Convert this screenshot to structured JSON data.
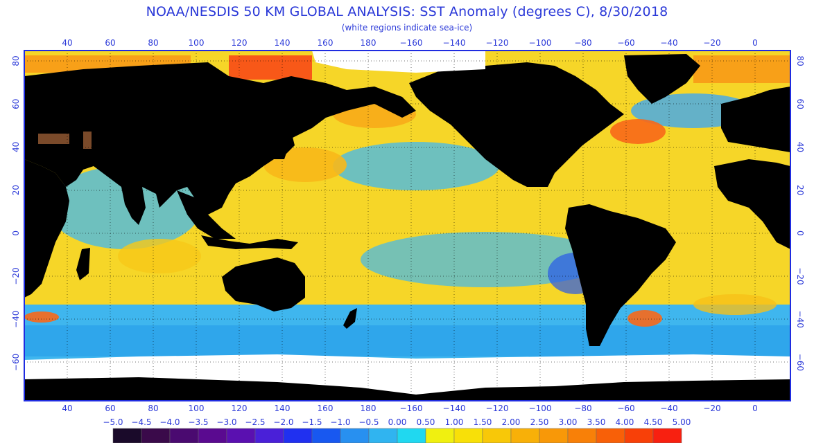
{
  "title": "NOAA/NESDIS 50 KM GLOBAL ANALYSIS: SST Anomaly (degrees C), 8/30/2018",
  "subtitle": "(white regions indicate sea-ice)",
  "lon_labels": [
    "40",
    "60",
    "80",
    "100",
    "120",
    "140",
    "160",
    "180",
    "−160",
    "−140",
    "−120",
    "−100",
    "−80",
    "−60",
    "−40",
    "−20",
    "0"
  ],
  "lat_labels": [
    "80",
    "60",
    "40",
    "20",
    "0",
    "−20",
    "−40",
    "−60"
  ],
  "colorbar": {
    "labels": [
      "−5.0",
      "−4.5",
      "−4.0",
      "−3.5",
      "−3.0",
      "−2.5",
      "−2.0",
      "−1.5",
      "−1.0",
      "−0.5",
      "0.00",
      "0.50",
      "1.00",
      "1.50",
      "2.00",
      "2.50",
      "3.00",
      "3.50",
      "4.00",
      "4.50",
      "5.00"
    ],
    "colors": [
      "#1a0a2a",
      "#3a0a4a",
      "#4a0a70",
      "#5a0a90",
      "#5a10b0",
      "#4a20d8",
      "#2030f0",
      "#1858f0",
      "#2890f0",
      "#30b4f0",
      "#20d8f0",
      "#f0f010",
      "#f8e008",
      "#f8c808",
      "#f8b008",
      "#f89808",
      "#f88008",
      "#f86008",
      "#f84008",
      "#f82010"
    ]
  },
  "colors": {
    "land": "#000000",
    "ocean_base": "#f6d628",
    "sea_ice": "#ffffff",
    "frame": "#1f2ce0"
  }
}
